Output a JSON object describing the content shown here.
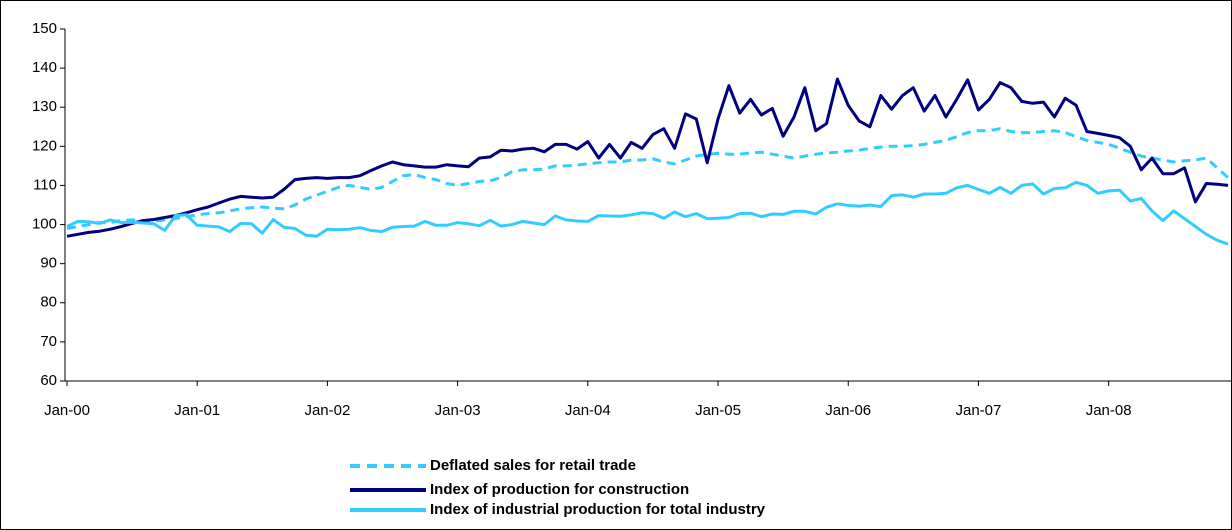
{
  "chart_data": {
    "type": "line",
    "categories": [
      "Jan-00",
      null,
      null,
      null,
      null,
      null,
      null,
      null,
      null,
      null,
      null,
      null,
      "Jan-01",
      null,
      null,
      null,
      null,
      null,
      null,
      null,
      null,
      null,
      null,
      null,
      "Jan-02",
      null,
      null,
      null,
      null,
      null,
      null,
      null,
      null,
      null,
      null,
      null,
      "Jan-03",
      null,
      null,
      null,
      null,
      null,
      null,
      null,
      null,
      null,
      null,
      null,
      "Jan-04",
      null,
      null,
      null,
      null,
      null,
      null,
      null,
      null,
      null,
      null,
      null,
      "Jan-05",
      null,
      null,
      null,
      null,
      null,
      null,
      null,
      null,
      null,
      null,
      null,
      "Jan-06",
      null,
      null,
      null,
      null,
      null,
      null,
      null,
      null,
      null,
      null,
      null,
      "Jan-07",
      null,
      null,
      null,
      null,
      null,
      null,
      null,
      null,
      null,
      null,
      null,
      "Jan-08",
      null,
      null,
      null,
      null,
      null,
      null,
      null,
      null,
      null,
      null,
      null
    ],
    "ylim": [
      60,
      150
    ],
    "yticks": [
      60,
      70,
      80,
      90,
      100,
      110,
      120,
      130,
      140,
      150
    ],
    "grid": false,
    "legend": "bottom",
    "series": [
      {
        "name": "Deflated sales for retail trade",
        "color": "#33ccff",
        "dashed": true,
        "values": [
          99,
          99.5,
          100,
          100.5,
          100.5,
          101,
          101.2,
          101,
          100.8,
          101.2,
          101.5,
          102,
          102.5,
          102.8,
          103,
          103.5,
          104,
          104.3,
          104.5,
          104.2,
          104,
          105,
          106.5,
          107.5,
          108.5,
          109.5,
          110,
          109.5,
          109,
          109.5,
          111,
          112.5,
          112.8,
          112,
          111.5,
          110.5,
          110,
          110.5,
          111,
          111.2,
          112,
          113.5,
          114,
          114,
          114.2,
          115,
          115,
          115.2,
          115.5,
          115.8,
          116,
          116,
          116.5,
          116.5,
          116.8,
          116,
          115.5,
          116.5,
          117.5,
          118,
          118.2,
          118,
          118,
          118.3,
          118.5,
          118,
          117.5,
          117,
          117.5,
          118,
          118.3,
          118.5,
          118.8,
          119,
          119.5,
          119.8,
          120,
          120,
          120.2,
          120.5,
          121,
          121.5,
          122.5,
          123.5,
          124,
          124,
          124.5,
          123.8,
          123.5,
          123.5,
          123.8,
          124,
          123.5,
          122.5,
          121.5,
          121,
          120.5,
          119.5,
          118.5,
          117.5,
          117,
          116.5,
          116,
          116.3,
          116.5,
          117,
          114.5,
          112
        ]
      },
      {
        "name": "Index of production for construction",
        "color": "#000080",
        "dashed": false,
        "values": [
          97,
          97.5,
          98,
          98.3,
          98.8,
          99.5,
          100.3,
          101,
          101.3,
          101.8,
          102.3,
          103,
          103.8,
          104.5,
          105.5,
          106.5,
          107.2,
          107,
          106.8,
          107,
          109,
          111.5,
          111.8,
          112,
          111.8,
          112,
          112,
          112.5,
          113.8,
          115,
          116,
          115.3,
          115,
          114.7,
          114.7,
          115.3,
          115,
          114.8,
          117,
          117.3,
          119,
          118.8,
          119.3,
          119.5,
          118.6,
          120.5,
          120.5,
          119.3,
          121.2,
          117,
          120.5,
          117,
          121,
          119.5,
          123,
          124.5,
          119.5,
          128.3,
          127,
          115.8,
          127,
          135.5,
          128.5,
          132,
          128,
          129.7,
          122.6,
          127.5,
          135,
          124,
          125.8,
          137.2,
          130.5,
          126.5,
          125,
          133,
          129.5,
          133,
          135,
          129,
          133,
          127.5,
          132,
          137,
          129.3,
          132,
          136.3,
          135,
          131.5,
          131,
          131.3,
          127.5,
          132.3,
          130.5,
          123.8,
          123.3,
          122.8,
          122.2,
          120,
          114,
          117,
          113,
          113,
          114.5,
          105.8,
          110.5,
          110.3,
          110
        ]
      },
      {
        "name": "Index of industrial production for total industry",
        "color": "#33ccff",
        "dashed": false,
        "values": [
          99.5,
          100.8,
          100.7,
          100.3,
          101.2,
          100.5,
          100.6,
          100.4,
          100.2,
          98.5,
          102.3,
          102.5,
          99.8,
          99.6,
          99.4,
          98.2,
          100.3,
          100.2,
          97.8,
          101.3,
          99.3,
          99,
          97.3,
          97,
          98.8,
          98.7,
          98.8,
          99.2,
          98.5,
          98.2,
          99.3,
          99.5,
          99.6,
          100.8,
          99.8,
          99.8,
          100.5,
          100.2,
          99.7,
          101.1,
          99.6,
          100,
          100.8,
          100.4,
          100,
          102.2,
          101.2,
          100.9,
          100.8,
          102.3,
          102.2,
          102.1,
          102.5,
          103,
          102.8,
          101.6,
          103.2,
          102,
          102.8,
          101.5,
          101.6,
          101.8,
          102.8,
          102.9,
          102,
          102.7,
          102.6,
          103.4,
          103.4,
          102.7,
          104.4,
          105.3,
          104.9,
          104.7,
          105,
          104.6,
          107.4,
          107.6,
          107,
          107.8,
          107.8,
          108,
          109.4,
          110,
          109,
          108,
          109.5,
          108,
          110,
          110.4,
          107.8,
          109.2,
          109.4,
          110.8,
          110,
          108,
          108.6,
          108.8,
          106,
          106.7,
          103.5,
          101,
          103.5,
          101.5,
          99.5,
          97.5,
          96,
          95
        ]
      }
    ]
  }
}
